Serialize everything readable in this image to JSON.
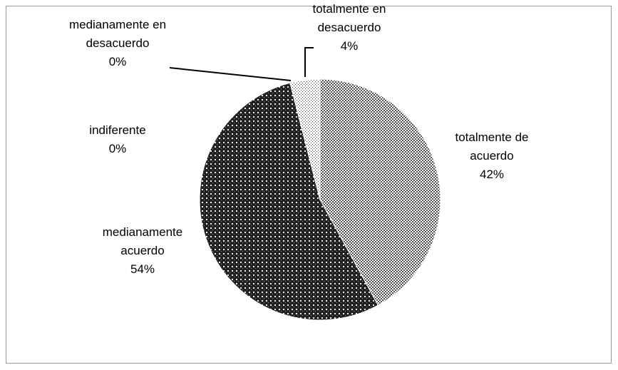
{
  "chart_data": {
    "type": "pie",
    "categories": [
      "totalmente de acuerdo",
      "medianamente acuerdo",
      "indiferente",
      "medianamente en desacuerdo",
      "totalmente en desacuerdo"
    ],
    "values": [
      42,
      54,
      0,
      0,
      4
    ],
    "value_labels": [
      "42%",
      "54%",
      "0%",
      "0%",
      "4%"
    ]
  }
}
